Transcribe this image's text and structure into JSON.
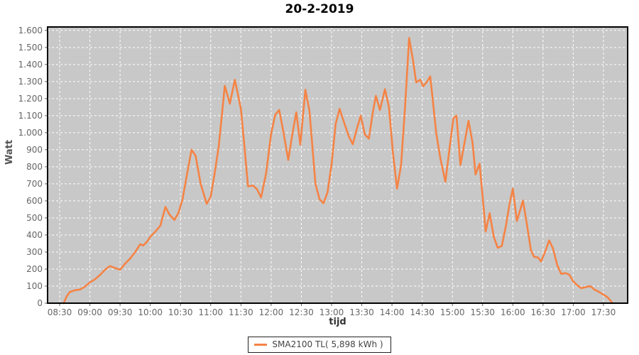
{
  "title": "20-2-2019",
  "colors": {
    "series": "#f58345",
    "plot_bg": "#c8c8c8",
    "grid": "#ffffff",
    "border": "#000000",
    "tick": "#666666",
    "tick_text": "#666666"
  },
  "legend": {
    "label": "SMA2100 TL( 5,898 kWh )"
  },
  "chart_data": {
    "type": "line",
    "title": "20-2-2019",
    "xlabel": "tijd",
    "ylabel": "Watt",
    "x_domain": [
      "08:18",
      "17:54"
    ],
    "ylim": [
      0,
      1620
    ],
    "grid": "white dashed, both axes, x every 30 min, y every 100 W",
    "legend_position": "bottom-center",
    "x_ticks": [
      "08:30",
      "09:00",
      "09:30",
      "10:00",
      "10:30",
      "11:00",
      "11:30",
      "12:00",
      "12:30",
      "13:00",
      "13:30",
      "14:00",
      "14:30",
      "15:00",
      "15:30",
      "16:00",
      "16:30",
      "17:00",
      "17:30"
    ],
    "y_tick_values": [
      0,
      100,
      200,
      300,
      400,
      500,
      600,
      700,
      800,
      900,
      1000,
      1100,
      1200,
      1300,
      1400,
      1500,
      1600
    ],
    "y_tick_labels": [
      "0",
      "100",
      "200",
      "300",
      "400",
      "500",
      "600",
      "700",
      "800",
      "900",
      "1.000",
      "1.100",
      "1.200",
      "1.300",
      "1.400",
      "1.500",
      "1.600"
    ],
    "series": [
      {
        "name": "SMA2100 TL( 5,898 kWh )",
        "color": "#f58345",
        "points": [
          [
            "08:34",
            0
          ],
          [
            "08:37",
            40
          ],
          [
            "08:40",
            65
          ],
          [
            "08:45",
            76
          ],
          [
            "08:50",
            80
          ],
          [
            "08:55",
            96
          ],
          [
            "09:00",
            122
          ],
          [
            "09:05",
            140
          ],
          [
            "09:10",
            165
          ],
          [
            "09:15",
            196
          ],
          [
            "09:20",
            218
          ],
          [
            "09:25",
            206
          ],
          [
            "09:30",
            196
          ],
          [
            "09:35",
            232
          ],
          [
            "09:40",
            262
          ],
          [
            "09:45",
            300
          ],
          [
            "09:50",
            346
          ],
          [
            "09:53",
            338
          ],
          [
            "09:57",
            362
          ],
          [
            "10:00",
            390
          ],
          [
            "10:05",
            420
          ],
          [
            "10:10",
            455
          ],
          [
            "10:15",
            565
          ],
          [
            "10:19",
            520
          ],
          [
            "10:24",
            488
          ],
          [
            "10:28",
            530
          ],
          [
            "10:32",
            610
          ],
          [
            "10:36",
            740
          ],
          [
            "10:41",
            900
          ],
          [
            "10:45",
            865
          ],
          [
            "10:50",
            700
          ],
          [
            "10:56",
            583
          ],
          [
            "11:00",
            625
          ],
          [
            "11:04",
            766
          ],
          [
            "11:08",
            920
          ],
          [
            "11:14",
            1275
          ],
          [
            "11:19",
            1170
          ],
          [
            "11:24",
            1310
          ],
          [
            "11:30",
            1140
          ],
          [
            "11:33",
            950
          ],
          [
            "11:37",
            685
          ],
          [
            "11:42",
            690
          ],
          [
            "11:46",
            668
          ],
          [
            "11:50",
            620
          ],
          [
            "11:55",
            762
          ],
          [
            "12:00",
            995
          ],
          [
            "12:04",
            1105
          ],
          [
            "12:08",
            1133
          ],
          [
            "12:12",
            1010
          ],
          [
            "12:17",
            840
          ],
          [
            "12:21",
            990
          ],
          [
            "12:25",
            1120
          ],
          [
            "12:29",
            930
          ],
          [
            "12:34",
            1252
          ],
          [
            "12:38",
            1130
          ],
          [
            "12:44",
            700
          ],
          [
            "12:48",
            610
          ],
          [
            "12:52",
            586
          ],
          [
            "12:56",
            650
          ],
          [
            "13:00",
            815
          ],
          [
            "13:04",
            1050
          ],
          [
            "13:08",
            1140
          ],
          [
            "13:13",
            1050
          ],
          [
            "13:17",
            980
          ],
          [
            "13:21",
            932
          ],
          [
            "13:25",
            1020
          ],
          [
            "13:29",
            1100
          ],
          [
            "13:33",
            990
          ],
          [
            "13:37",
            965
          ],
          [
            "13:41",
            1120
          ],
          [
            "13:44",
            1216
          ],
          [
            "13:48",
            1133
          ],
          [
            "13:53",
            1255
          ],
          [
            "13:57",
            1150
          ],
          [
            "14:01",
            880
          ],
          [
            "14:05",
            672
          ],
          [
            "14:09",
            810
          ],
          [
            "14:13",
            1150
          ],
          [
            "14:17",
            1555
          ],
          [
            "14:21",
            1420
          ],
          [
            "14:24",
            1295
          ],
          [
            "14:28",
            1310
          ],
          [
            "14:31",
            1272
          ],
          [
            "14:35",
            1300
          ],
          [
            "14:38",
            1330
          ],
          [
            "14:44",
            995
          ],
          [
            "14:48",
            850
          ],
          [
            "14:53",
            712
          ],
          [
            "14:57",
            900
          ],
          [
            "15:01",
            1085
          ],
          [
            "15:04",
            1100
          ],
          [
            "15:08",
            810
          ],
          [
            "15:12",
            940
          ],
          [
            "15:16",
            1070
          ],
          [
            "15:20",
            940
          ],
          [
            "15:23",
            755
          ],
          [
            "15:27",
            818
          ],
          [
            "15:31",
            560
          ],
          [
            "15:33",
            420
          ],
          [
            "15:37",
            528
          ],
          [
            "15:41",
            390
          ],
          [
            "15:45",
            325
          ],
          [
            "15:49",
            335
          ],
          [
            "15:53",
            450
          ],
          [
            "15:57",
            590
          ],
          [
            "16:00",
            672
          ],
          [
            "16:04",
            482
          ],
          [
            "16:08",
            560
          ],
          [
            "16:10",
            602
          ],
          [
            "16:14",
            460
          ],
          [
            "16:18",
            310
          ],
          [
            "16:21",
            272
          ],
          [
            "16:25",
            268
          ],
          [
            "16:28",
            245
          ],
          [
            "16:32",
            300
          ],
          [
            "16:36",
            368
          ],
          [
            "16:40",
            320
          ],
          [
            "16:44",
            225
          ],
          [
            "16:48",
            172
          ],
          [
            "16:52",
            176
          ],
          [
            "16:56",
            168
          ],
          [
            "17:00",
            128
          ],
          [
            "17:04",
            105
          ],
          [
            "17:08",
            88
          ],
          [
            "17:13",
            95
          ],
          [
            "17:17",
            100
          ],
          [
            "17:21",
            80
          ],
          [
            "17:25",
            68
          ],
          [
            "17:30",
            50
          ],
          [
            "17:34",
            35
          ],
          [
            "17:37",
            15
          ],
          [
            "17:39",
            0
          ]
        ]
      }
    ]
  }
}
